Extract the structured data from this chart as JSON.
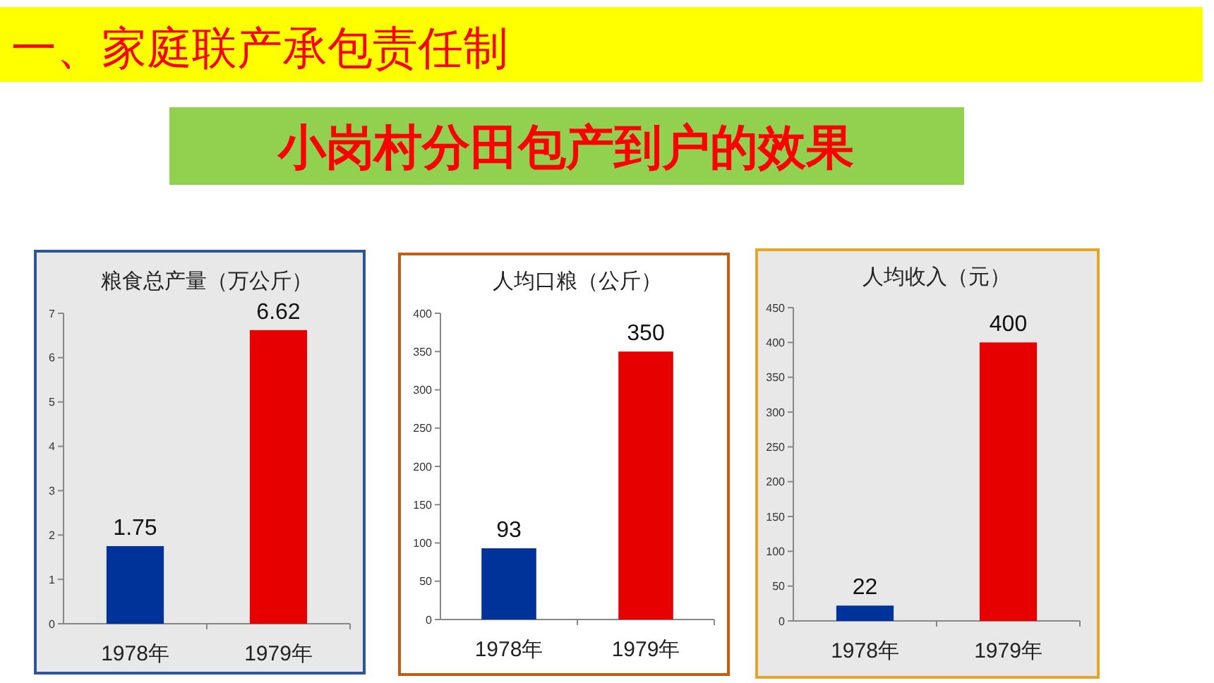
{
  "chart_data": [
    {
      "type": "other",
      "title": "一、家庭联产承包责任制",
      "subtitle": "小岗村分田包产到户的效果"
    },
    {
      "type": "bar",
      "title": "粮食总产量（万公斤）",
      "categories": [
        "1978年",
        "1979年"
      ],
      "values": [
        1.75,
        6.62
      ],
      "colors": [
        "#003399",
        "#e60000"
      ],
      "ylim": [
        0,
        7
      ],
      "yticks": [
        0,
        1,
        2,
        3,
        4,
        5,
        6,
        7
      ],
      "data_labels": true
    },
    {
      "type": "bar",
      "title": "人均口粮（公斤）",
      "categories": [
        "1978年",
        "1979年"
      ],
      "values": [
        93,
        350
      ],
      "colors": [
        "#003399",
        "#e60000"
      ],
      "ylim": [
        0,
        400
      ],
      "yticks": [
        0,
        50,
        100,
        150,
        200,
        250,
        300,
        350,
        400
      ],
      "data_labels": true
    },
    {
      "type": "bar",
      "title": "人均收入（元）",
      "categories": [
        "1978年",
        "1979年"
      ],
      "values": [
        22,
        400
      ],
      "colors": [
        "#003399",
        "#e60000"
      ],
      "ylim": [
        0,
        450
      ],
      "yticks": [
        0,
        50,
        100,
        150,
        200,
        250,
        300,
        350,
        400,
        450
      ],
      "data_labels": true
    }
  ]
}
